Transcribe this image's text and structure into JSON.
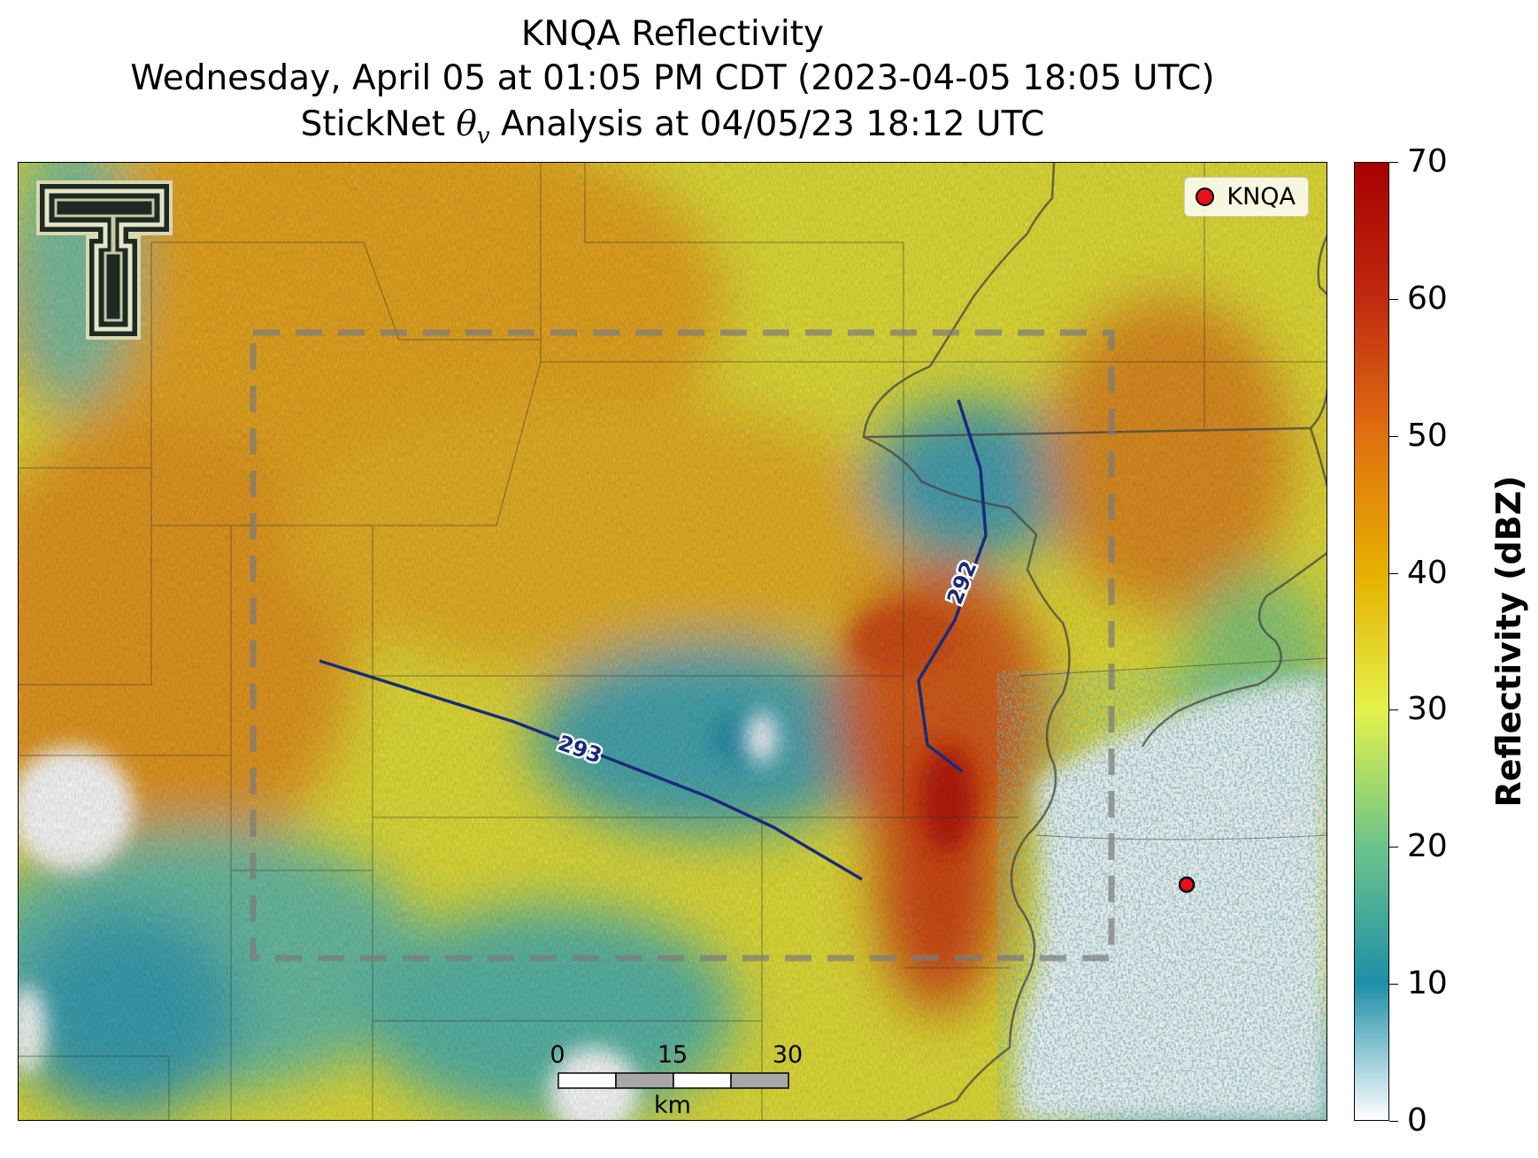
{
  "title": {
    "line1": "KNQA Reflectivity",
    "line2": "Wednesday, April 05 at 01:05 PM CDT (2023-04-05 18:05 UTC)",
    "line3_prefix": "StickNet ",
    "line3_symbol": "θ",
    "line3_subscript": "v",
    "line3_suffix": " Analysis at 04/05/23 18:12 UTC"
  },
  "legend": {
    "radar_site_label": "KNQA",
    "radar_site_color": "#e8101a"
  },
  "contours": [
    {
      "label": "293",
      "color": "#1a2a7a"
    },
    {
      "label": "292",
      "color": "#1a2a7a"
    }
  ],
  "scale_bar": {
    "ticks": [
      "0",
      "15",
      "30"
    ],
    "unit": "km"
  },
  "colorbar": {
    "label": "Reflectivity (dBZ)",
    "min": 0,
    "max": 70,
    "ticks": [
      "0",
      "10",
      "20",
      "30",
      "40",
      "50",
      "60",
      "70"
    ],
    "colors": [
      "#ffffff",
      "#1e8fa8",
      "#6cc48a",
      "#e4f24a",
      "#e6b000",
      "#e07010",
      "#c02a10",
      "#a80000"
    ]
  },
  "logo": "texas-tech-double-t-logo"
}
